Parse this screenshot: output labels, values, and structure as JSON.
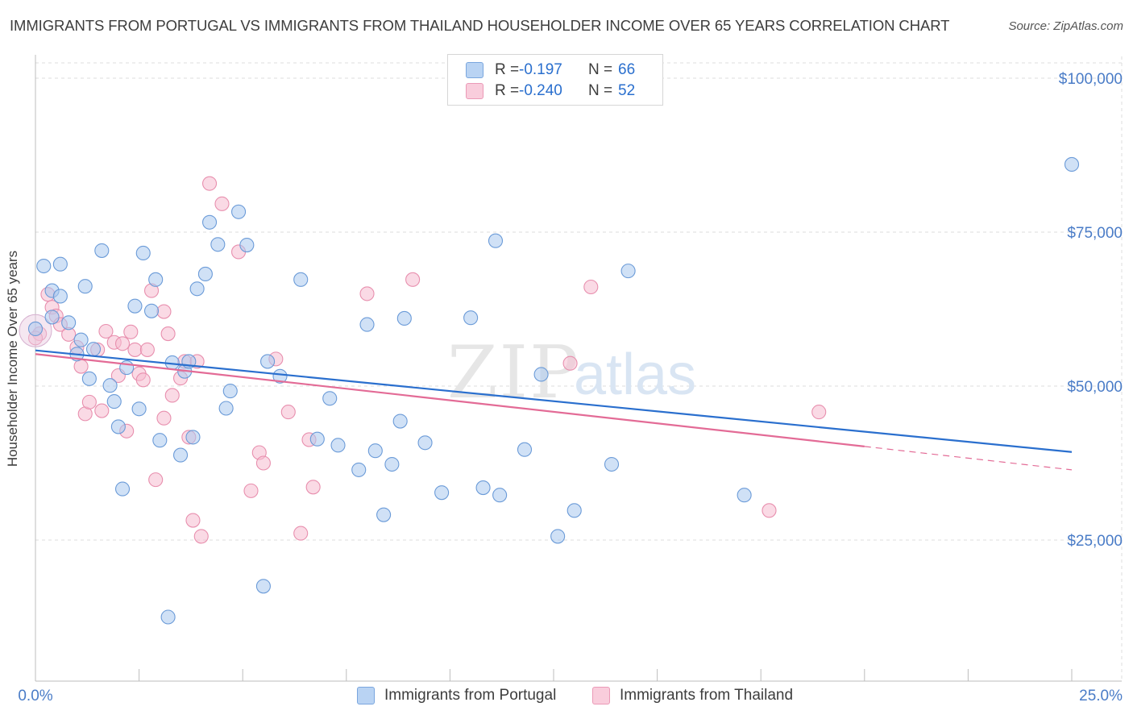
{
  "title": "IMMIGRANTS FROM PORTUGAL VS IMMIGRANTS FROM THAILAND HOUSEHOLDER INCOME OVER 65 YEARS CORRELATION CHART",
  "source": "Source: ZipAtlas.com",
  "watermark": {
    "zip": "ZIP",
    "atlas": "atlas"
  },
  "legend": {
    "rows": [
      {
        "r_label": "R =",
        "r_value": "-0.197",
        "n_label": "N =",
        "n_value": "66"
      },
      {
        "r_label": "R =",
        "r_value": "-0.240",
        "n_label": "N =",
        "n_value": "52"
      }
    ]
  },
  "bottom_legend": [
    "Immigrants from Portugal",
    "Immigrants from Thailand"
  ],
  "colors": {
    "portugal_fill": "#a9c8ef",
    "portugal_stroke": "#6b9bd8",
    "portugal_line": "#2a6fce",
    "thailand_fill": "#f6bcd0",
    "thailand_stroke": "#e88fae",
    "thailand_line": "#e36b96",
    "axis_text": "#4a7cc7",
    "grid": "#dcdcdc"
  },
  "chart_data": {
    "type": "scatter",
    "xlabel": "",
    "ylabel": "Householder Income Over 65 years",
    "xlim": [
      0,
      25
    ],
    "ylim": [
      0,
      105000
    ],
    "x_tick_labels": [
      "0.0%",
      "25.0%"
    ],
    "y_ticks": [
      25000,
      50000,
      75000,
      100000
    ],
    "y_tick_labels": [
      "$25,000",
      "$50,000",
      "$75,000",
      "$100,000"
    ],
    "grid": true,
    "legend_position": "top-center",
    "series": [
      {
        "name": "Immigrants from Portugal",
        "color": "#a9c8ef",
        "trend": {
          "x0": 0.0,
          "y0": 55800,
          "x1": 25.0,
          "y1": 39300
        },
        "points": [
          [
            0.2,
            69500
          ],
          [
            0.4,
            65500
          ],
          [
            0.6,
            69800
          ],
          [
            0.6,
            64600
          ],
          [
            0.8,
            60300
          ],
          [
            1.0,
            55200
          ],
          [
            1.1,
            57500
          ],
          [
            1.2,
            66200
          ],
          [
            1.3,
            51200
          ],
          [
            1.4,
            56000
          ],
          [
            1.6,
            72000
          ],
          [
            1.8,
            50100
          ],
          [
            1.9,
            47500
          ],
          [
            2.0,
            43400
          ],
          [
            2.1,
            33300
          ],
          [
            2.2,
            53000
          ],
          [
            2.4,
            63000
          ],
          [
            2.5,
            46300
          ],
          [
            2.6,
            71600
          ],
          [
            2.8,
            62200
          ],
          [
            2.9,
            67300
          ],
          [
            3.0,
            41200
          ],
          [
            3.2,
            12500
          ],
          [
            3.3,
            53800
          ],
          [
            3.5,
            38800
          ],
          [
            3.6,
            52400
          ],
          [
            3.7,
            54000
          ],
          [
            3.8,
            41700
          ],
          [
            3.9,
            65800
          ],
          [
            4.1,
            68200
          ],
          [
            4.2,
            76600
          ],
          [
            4.4,
            73000
          ],
          [
            4.6,
            46400
          ],
          [
            4.7,
            49200
          ],
          [
            4.9,
            78300
          ],
          [
            5.1,
            72900
          ],
          [
            5.5,
            17500
          ],
          [
            5.6,
            54000
          ],
          [
            5.9,
            51600
          ],
          [
            6.4,
            67300
          ],
          [
            6.8,
            41400
          ],
          [
            7.1,
            48000
          ],
          [
            7.3,
            40400
          ],
          [
            7.8,
            36400
          ],
          [
            8.0,
            60000
          ],
          [
            8.2,
            39500
          ],
          [
            8.4,
            29100
          ],
          [
            8.6,
            37300
          ],
          [
            8.8,
            44300
          ],
          [
            8.9,
            61000
          ],
          [
            9.4,
            40800
          ],
          [
            9.8,
            32700
          ],
          [
            10.5,
            61100
          ],
          [
            10.8,
            33500
          ],
          [
            11.1,
            73600
          ],
          [
            11.2,
            32300
          ],
          [
            11.8,
            39700
          ],
          [
            12.2,
            51900
          ],
          [
            12.6,
            25600
          ],
          [
            13.0,
            29800
          ],
          [
            13.9,
            37300
          ],
          [
            14.3,
            68700
          ],
          [
            17.1,
            32300
          ],
          [
            25.0,
            86000
          ],
          [
            0.0,
            59300
          ],
          [
            0.4,
            61200
          ]
        ]
      },
      {
        "name": "Immigrants from Thailand",
        "color": "#f6bcd0",
        "trend": {
          "x0": 0.0,
          "y0": 55200,
          "x1": 20.0,
          "y1": 40200,
          "dash_to_x": 25.0,
          "dash_to_y": 36400
        },
        "points": [
          [
            0.1,
            58500
          ],
          [
            0.3,
            64900
          ],
          [
            0.4,
            62800
          ],
          [
            0.5,
            61400
          ],
          [
            0.6,
            60000
          ],
          [
            0.8,
            58400
          ],
          [
            1.0,
            56300
          ],
          [
            1.1,
            53200
          ],
          [
            1.2,
            45500
          ],
          [
            1.3,
            47400
          ],
          [
            1.5,
            55900
          ],
          [
            1.6,
            46000
          ],
          [
            1.7,
            58900
          ],
          [
            1.9,
            57100
          ],
          [
            2.0,
            51700
          ],
          [
            2.1,
            56900
          ],
          [
            2.2,
            42700
          ],
          [
            2.3,
            58800
          ],
          [
            2.4,
            55900
          ],
          [
            2.5,
            52000
          ],
          [
            2.6,
            51000
          ],
          [
            2.7,
            55900
          ],
          [
            2.8,
            65500
          ],
          [
            2.9,
            34800
          ],
          [
            3.1,
            62100
          ],
          [
            3.1,
            44800
          ],
          [
            3.2,
            58500
          ],
          [
            3.3,
            48500
          ],
          [
            3.5,
            51300
          ],
          [
            3.6,
            54000
          ],
          [
            3.7,
            41700
          ],
          [
            3.8,
            28200
          ],
          [
            3.9,
            54000
          ],
          [
            4.0,
            25600
          ],
          [
            4.2,
            82900
          ],
          [
            4.5,
            79600
          ],
          [
            4.9,
            71800
          ],
          [
            5.2,
            33000
          ],
          [
            5.4,
            39200
          ],
          [
            5.5,
            37500
          ],
          [
            5.8,
            54400
          ],
          [
            6.1,
            45800
          ],
          [
            6.4,
            26100
          ],
          [
            6.6,
            41300
          ],
          [
            6.7,
            33600
          ],
          [
            8.0,
            65000
          ],
          [
            9.1,
            67300
          ],
          [
            12.9,
            53700
          ],
          [
            13.4,
            66100
          ],
          [
            17.7,
            29800
          ],
          [
            18.9,
            45800
          ],
          [
            0.0,
            57800
          ]
        ]
      }
    ]
  }
}
